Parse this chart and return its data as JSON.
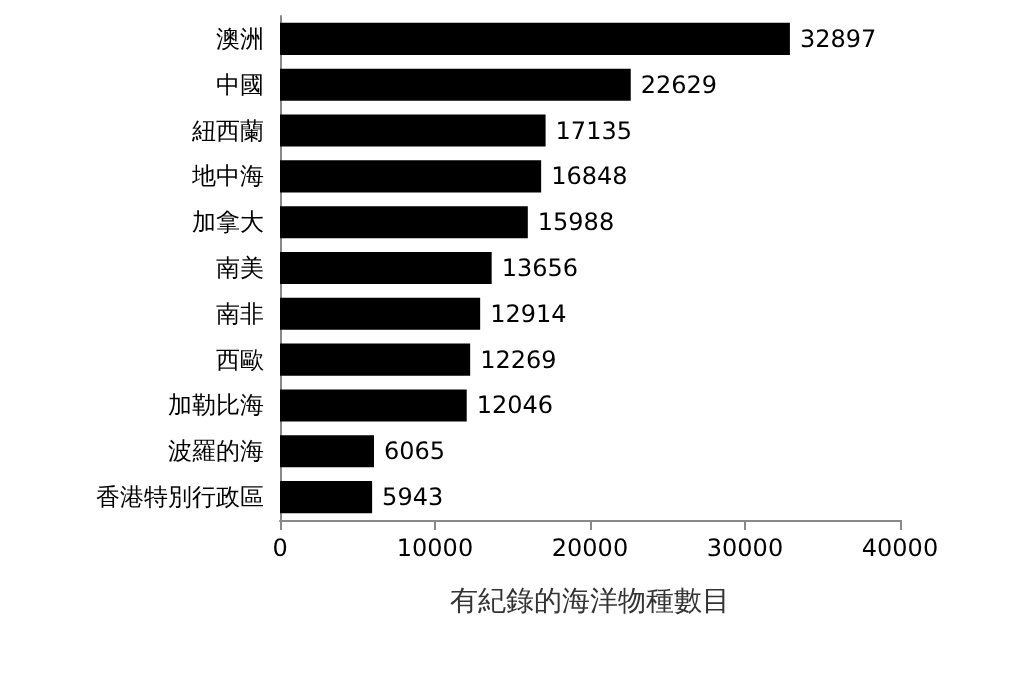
{
  "chart_data": {
    "type": "bar",
    "orientation": "horizontal",
    "xlabel": "有紀錄的海洋物種數目",
    "categories": [
      "澳洲",
      "中國",
      "紐西蘭",
      "地中海",
      "加拿大",
      "南美",
      "南非",
      "西歐",
      "加勒比海",
      "波羅的海",
      "香港特別行政區"
    ],
    "values": [
      32897,
      22629,
      17135,
      16848,
      15988,
      13656,
      12914,
      12269,
      12046,
      6065,
      5943
    ],
    "color": "#000000",
    "xlim": [
      0,
      40000
    ],
    "xticks": [
      0,
      10000,
      20000,
      30000,
      40000
    ],
    "data_labels": true,
    "grid": false
  }
}
